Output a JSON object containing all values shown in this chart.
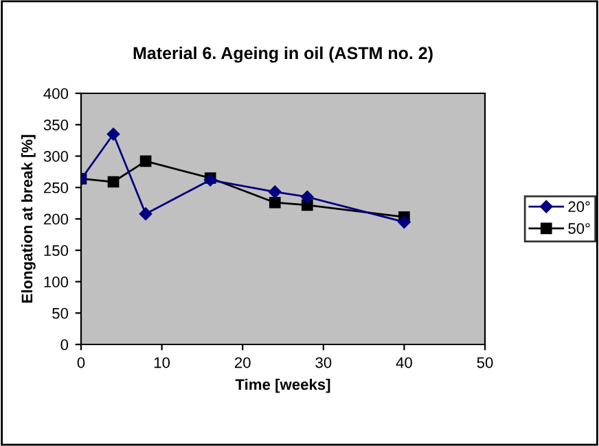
{
  "chart_data": {
    "type": "line",
    "title": "Material 6. Ageing in oil (ASTM no. 2)",
    "xlabel": "Time [weeks]",
    "ylabel": "Elongation at break [%]",
    "x": [
      0,
      4,
      8,
      16,
      24,
      28,
      40
    ],
    "series": [
      {
        "name": "20°",
        "color": "#000080",
        "marker": "diamond",
        "values": [
          263,
          335,
          208,
          262,
          243,
          235,
          195
        ]
      },
      {
        "name": "50°",
        "color": "#000000",
        "marker": "square",
        "values": [
          264,
          259,
          292,
          265,
          226,
          222,
          203
        ]
      }
    ],
    "xlim": [
      0,
      50
    ],
    "xticks": [
      0,
      10,
      20,
      30,
      40,
      50
    ],
    "ylim": [
      0,
      400
    ],
    "yticks": [
      0,
      50,
      100,
      150,
      200,
      250,
      300,
      350,
      400
    ],
    "grid": false,
    "legend": "right",
    "line_style": "solid"
  }
}
